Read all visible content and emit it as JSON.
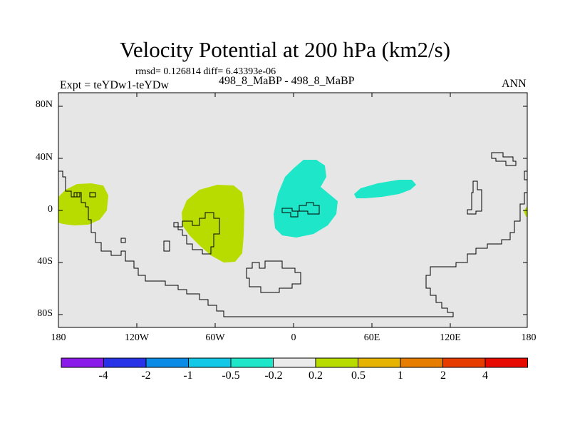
{
  "title": "Velocity Potential at 200 hPa (km2/s)",
  "stats": "rmsd= 0.126814  diff= 6.43393e-06",
  "left_label": "Expt = teYDw1-teYDw",
  "center_label": "498_8_MaBP - 498_8_MaBP",
  "right_label": "ANN",
  "map": {
    "lat_ticks": [
      "80N",
      "40N",
      "0",
      "40S",
      "80S"
    ],
    "lon_ticks": [
      "180",
      "120W",
      "60W",
      "0",
      "60E",
      "120E",
      "180"
    ],
    "background_color": "#e6e6e6"
  },
  "colorbar": {
    "labels": [
      "-4",
      "-2",
      "-1",
      "-0.5",
      "-0.2",
      "0.2",
      "0.5",
      "1",
      "2",
      "4"
    ],
    "colors": [
      "#8b1be8",
      "#2832e6",
      "#0a8ce6",
      "#12c8e6",
      "#1ee6c8",
      "#ebebeb",
      "#b9dc00",
      "#e6b400",
      "#e67d00",
      "#e63c00",
      "#e60a00"
    ]
  }
}
